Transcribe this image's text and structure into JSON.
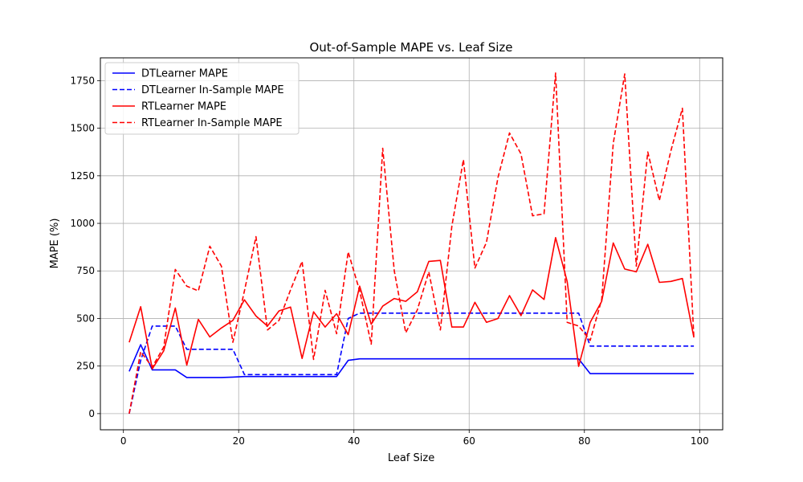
{
  "chart_data": {
    "type": "line",
    "title": "Out-of-Sample MAPE vs. Leaf Size",
    "xlabel": "Leaf Size",
    "ylabel": "MAPE (%)",
    "xlim": [
      -4,
      104
    ],
    "ylim": [
      -85,
      1870
    ],
    "xticks": [
      0,
      20,
      40,
      60,
      80,
      100
    ],
    "yticks": [
      0,
      250,
      500,
      750,
      1000,
      1250,
      1500,
      1750
    ],
    "grid": true,
    "legend_position": "upper-left",
    "x": [
      1,
      3,
      5,
      7,
      9,
      11,
      13,
      15,
      17,
      19,
      21,
      23,
      25,
      27,
      29,
      31,
      33,
      35,
      37,
      39,
      41,
      43,
      45,
      47,
      49,
      51,
      53,
      55,
      57,
      59,
      61,
      63,
      65,
      67,
      69,
      71,
      73,
      75,
      77,
      79,
      81,
      83,
      85,
      87,
      89,
      91,
      93,
      95,
      97,
      99
    ],
    "series": [
      {
        "name": "DTLearner MAPE",
        "color": "#0000ff",
        "style": "solid",
        "values": [
          222,
          362,
          230,
          230,
          230,
          190,
          190,
          190,
          190,
          192,
          195,
          195,
          195,
          195,
          195,
          195,
          195,
          195,
          195,
          280,
          288,
          288,
          288,
          288,
          288,
          288,
          288,
          288,
          288,
          288,
          288,
          288,
          288,
          288,
          288,
          288,
          288,
          288,
          288,
          288,
          210,
          210,
          210,
          210,
          210,
          210,
          210,
          210,
          210,
          210
        ]
      },
      {
        "name": "DTLearner In-Sample MAPE",
        "color": "#0000ff",
        "style": "dashed",
        "values": [
          0,
          280,
          460,
          460,
          460,
          338,
          338,
          338,
          338,
          338,
          205,
          205,
          205,
          205,
          205,
          205,
          205,
          205,
          205,
          500,
          528,
          528,
          528,
          528,
          528,
          528,
          528,
          528,
          528,
          528,
          528,
          528,
          528,
          528,
          528,
          528,
          528,
          528,
          528,
          528,
          355,
          355,
          355,
          355,
          355,
          355,
          355,
          355,
          355,
          355
        ]
      },
      {
        "name": "RTLearner MAPE",
        "color": "#ff0000",
        "style": "solid",
        "values": [
          375,
          562,
          235,
          330,
          555,
          255,
          495,
          403,
          450,
          490,
          598,
          513,
          460,
          540,
          560,
          290,
          535,
          455,
          525,
          415,
          670,
          470,
          565,
          605,
          590,
          640,
          800,
          805,
          455,
          455,
          585,
          480,
          500,
          620,
          515,
          650,
          600,
          925,
          695,
          248,
          480,
          590,
          897,
          760,
          745,
          890,
          690,
          695,
          710,
          400
        ]
      },
      {
        "name": "RTLearner In-Sample MAPE",
        "color": "#ff0000",
        "style": "dashed",
        "values": [
          0,
          325,
          245,
          350,
          758,
          670,
          645,
          880,
          775,
          375,
          645,
          930,
          440,
          490,
          650,
          800,
          285,
          648,
          420,
          850,
          645,
          365,
          1395,
          750,
          425,
          545,
          745,
          440,
          985,
          1335,
          765,
          900,
          1240,
          1475,
          1365,
          1040,
          1050,
          1790,
          480,
          460,
          385,
          600,
          1420,
          1785,
          775,
          1375,
          1120,
          1380,
          1605,
          400
        ]
      }
    ]
  }
}
